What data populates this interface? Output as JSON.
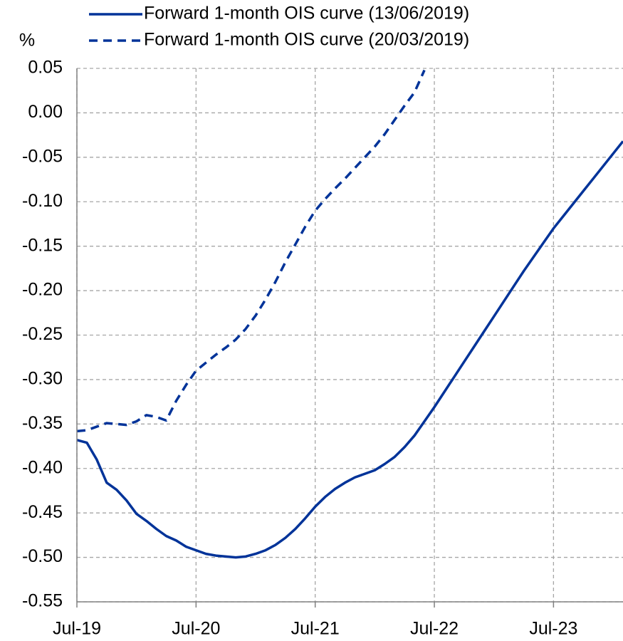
{
  "chart_data": {
    "type": "line",
    "y_label": "%",
    "x": [
      "Jul-19",
      "Aug-19",
      "Sep-19",
      "Oct-19",
      "Nov-19",
      "Dec-19",
      "Jan-20",
      "Feb-20",
      "Mar-20",
      "Apr-20",
      "May-20",
      "Jun-20",
      "Jul-20",
      "Aug-20",
      "Sep-20",
      "Oct-20",
      "Nov-20",
      "Dec-20",
      "Jan-21",
      "Feb-21",
      "Mar-21",
      "Apr-21",
      "May-21",
      "Jun-21",
      "Jul-21",
      "Aug-21",
      "Sep-21",
      "Oct-21",
      "Nov-21",
      "Dec-21",
      "Jan-22",
      "Feb-22",
      "Mar-22",
      "Apr-22",
      "May-22",
      "Jun-22",
      "Jul-22",
      "Aug-22",
      "Sep-22",
      "Oct-22",
      "Nov-22",
      "Dec-22",
      "Jan-23",
      "Feb-23",
      "Mar-23",
      "Apr-23",
      "May-23",
      "Jun-23",
      "Jul-23",
      "Aug-23",
      "Sep-23",
      "Oct-23",
      "Nov-23",
      "Dec-23",
      "Jan-24",
      "Feb-24"
    ],
    "series": [
      {
        "name": "Forward 1-month OIS curve (13/06/2019)",
        "color": "#003399",
        "dash": false,
        "values": [
          -0.368,
          -0.371,
          -0.39,
          -0.416,
          -0.424,
          -0.436,
          -0.451,
          -0.459,
          -0.468,
          -0.476,
          -0.481,
          -0.488,
          -0.492,
          -0.496,
          -0.498,
          -0.499,
          -0.5,
          -0.499,
          -0.496,
          -0.492,
          -0.486,
          -0.478,
          -0.468,
          -0.456,
          -0.443,
          -0.432,
          -0.423,
          -0.416,
          -0.41,
          -0.406,
          -0.402,
          -0.395,
          -0.387,
          -0.376,
          -0.363,
          -0.347,
          -0.331,
          -0.314,
          -0.297,
          -0.28,
          -0.263,
          -0.246,
          -0.229,
          -0.212,
          -0.195,
          -0.178,
          -0.162,
          -0.146,
          -0.13,
          -0.116,
          -0.102,
          -0.088,
          -0.074,
          -0.06,
          -0.046,
          -0.032
        ]
      },
      {
        "name": "Forward 1-month OIS curve (20/03/2019)",
        "color": "#003399",
        "dash": true,
        "values": [
          -0.358,
          -0.357,
          -0.353,
          -0.349,
          -0.35,
          -0.351,
          -0.347,
          -0.34,
          -0.342,
          -0.346,
          -0.324,
          -0.306,
          -0.29,
          -0.281,
          -0.272,
          -0.264,
          -0.255,
          -0.243,
          -0.228,
          -0.21,
          -0.19,
          -0.168,
          -0.148,
          -0.128,
          -0.11,
          -0.097,
          -0.085,
          -0.074,
          -0.062,
          -0.05,
          -0.038,
          -0.024,
          -0.008,
          0.008,
          0.023,
          0.048,
          null,
          null,
          null,
          null,
          null,
          null,
          null,
          null,
          null,
          null,
          null,
          null,
          null,
          null,
          null,
          null,
          null,
          null,
          null,
          null
        ]
      }
    ],
    "xlim": [
      "Jul-19",
      "Feb-24"
    ],
    "xticks": [
      "Jul-19",
      "Jul-20",
      "Jul-21",
      "Jul-22",
      "Jul-23"
    ],
    "ylim": [
      -0.55,
      0.05
    ],
    "yticks": [
      0.05,
      {
        "value": 0,
        "label": "0.00"
      },
      -0.05,
      {
        "value": -0.1,
        "label": "-0.10"
      },
      -0.15,
      {
        "value": -0.2,
        "label": "-0.20"
      },
      -0.25,
      {
        "value": -0.3,
        "label": "-0.30"
      },
      -0.35,
      {
        "value": -0.4,
        "label": "-0.40"
      },
      -0.45,
      {
        "value": -0.5,
        "label": "-0.50"
      },
      -0.55
    ],
    "grid": true,
    "legend": "top"
  }
}
